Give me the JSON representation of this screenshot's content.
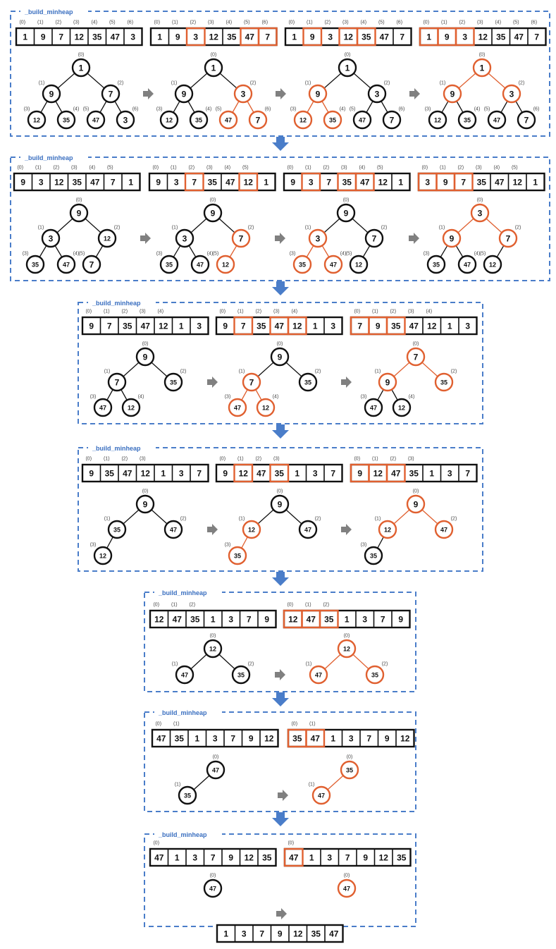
{
  "colors": {
    "black": "#111111",
    "highlight": "#e06030",
    "dashed": "#4a7dc9",
    "arrow_down": "#4a7dc9",
    "arrow_right": "#808080",
    "index_label": "#444444",
    "stage_label": "#3a6fc0"
  },
  "stage_label": "_build_minheap",
  "stages": [
    {
      "frames": [
        {
          "values": [
            "1",
            "9",
            "7",
            "12",
            "35",
            "47",
            "3"
          ],
          "heap_size": 7,
          "hl": [],
          "tree_hl": []
        },
        {
          "values": [
            "1",
            "9",
            "3",
            "12",
            "35",
            "47",
            "7"
          ],
          "heap_size": 7,
          "hl": [
            2,
            5,
            6
          ],
          "tree_hl": [
            2,
            5,
            6
          ]
        },
        {
          "values": [
            "1",
            "9",
            "3",
            "12",
            "35",
            "47",
            "7"
          ],
          "heap_size": 7,
          "hl": [
            1,
            3,
            4
          ],
          "tree_hl": [
            1,
            3,
            4
          ]
        },
        {
          "values": [
            "1",
            "9",
            "3",
            "12",
            "35",
            "47",
            "7"
          ],
          "heap_size": 7,
          "hl": [
            0,
            1,
            2
          ],
          "tree_hl": [
            0,
            1,
            2
          ]
        }
      ]
    },
    {
      "frames": [
        {
          "values": [
            "9",
            "3",
            "12",
            "35",
            "47",
            "7",
            "1"
          ],
          "heap_size": 6,
          "hl": [],
          "tree_hl": []
        },
        {
          "values": [
            "9",
            "3",
            "7",
            "35",
            "47",
            "12",
            "1"
          ],
          "heap_size": 6,
          "hl": [
            2,
            5
          ],
          "tree_hl": [
            2,
            5
          ]
        },
        {
          "values": [
            "9",
            "3",
            "7",
            "35",
            "47",
            "12",
            "1"
          ],
          "heap_size": 6,
          "hl": [
            1,
            3,
            4
          ],
          "tree_hl": [
            1,
            3,
            4
          ]
        },
        {
          "values": [
            "3",
            "9",
            "7",
            "35",
            "47",
            "12",
            "1"
          ],
          "heap_size": 6,
          "hl": [
            0,
            1,
            2
          ],
          "tree_hl": [
            0,
            1,
            2
          ]
        }
      ]
    },
    {
      "frames": [
        {
          "values": [
            "9",
            "7",
            "35",
            "47",
            "12",
            "1",
            "3"
          ],
          "heap_size": 5,
          "hl": [],
          "tree_hl": []
        },
        {
          "values": [
            "9",
            "7",
            "35",
            "47",
            "12",
            "1",
            "3"
          ],
          "heap_size": 5,
          "hl": [
            1,
            3,
            4
          ],
          "tree_hl": [
            1,
            3,
            4
          ]
        },
        {
          "values": [
            "7",
            "9",
            "35",
            "47",
            "12",
            "1",
            "3"
          ],
          "heap_size": 5,
          "hl": [
            0,
            1,
            2
          ],
          "tree_hl": [
            0,
            1,
            2
          ]
        }
      ]
    },
    {
      "frames": [
        {
          "values": [
            "9",
            "35",
            "47",
            "12",
            "1",
            "3",
            "7"
          ],
          "heap_size": 4,
          "hl": [],
          "tree_hl": []
        },
        {
          "values": [
            "9",
            "12",
            "47",
            "35",
            "1",
            "3",
            "7"
          ],
          "heap_size": 4,
          "hl": [
            1,
            3
          ],
          "tree_hl": [
            1,
            3
          ]
        },
        {
          "values": [
            "9",
            "12",
            "47",
            "35",
            "1",
            "3",
            "7"
          ],
          "heap_size": 4,
          "hl": [
            0,
            1,
            2
          ],
          "tree_hl": [
            0,
            1,
            2
          ]
        }
      ]
    },
    {
      "frames": [
        {
          "values": [
            "12",
            "47",
            "35",
            "1",
            "3",
            "7",
            "9"
          ],
          "heap_size": 3,
          "hl": [],
          "tree_hl": []
        },
        {
          "values": [
            "12",
            "47",
            "35",
            "1",
            "3",
            "7",
            "9"
          ],
          "heap_size": 3,
          "hl": [
            0,
            1,
            2
          ],
          "tree_hl": [
            0,
            1,
            2
          ]
        }
      ]
    },
    {
      "frames": [
        {
          "values": [
            "47",
            "35",
            "1",
            "3",
            "7",
            "9",
            "12"
          ],
          "heap_size": 2,
          "hl": [],
          "tree_hl": []
        },
        {
          "values": [
            "35",
            "47",
            "1",
            "3",
            "7",
            "9",
            "12"
          ],
          "heap_size": 2,
          "hl": [
            0,
            1
          ],
          "tree_hl": [
            0,
            1
          ]
        }
      ]
    },
    {
      "frames": [
        {
          "values": [
            "47",
            "1",
            "3",
            "7",
            "9",
            "12",
            "35"
          ],
          "heap_size": 1,
          "hl": [],
          "tree_hl": []
        },
        {
          "values": [
            "47",
            "1",
            "3",
            "7",
            "9",
            "12",
            "35"
          ],
          "heap_size": 1,
          "hl": [
            0
          ],
          "tree_hl": [
            0
          ]
        }
      ]
    }
  ],
  "final_array": [
    "1",
    "3",
    "7",
    "9",
    "12",
    "35",
    "47"
  ]
}
